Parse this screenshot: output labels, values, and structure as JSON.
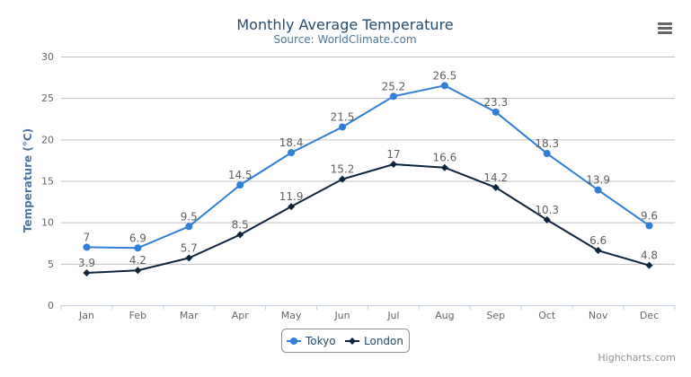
{
  "chart_data": {
    "type": "line",
    "title": "Monthly Average Temperature",
    "subtitle": "Source: WorldClimate.com",
    "ylabel": "Temperature (°C)",
    "xlabel": "",
    "ylim": [
      0,
      30
    ],
    "yticks": [
      0,
      5,
      10,
      15,
      20,
      25,
      30
    ],
    "grid": true,
    "legend_placement": "bottom-center",
    "categories": [
      "Jan",
      "Feb",
      "Mar",
      "Apr",
      "May",
      "Jun",
      "Jul",
      "Aug",
      "Sep",
      "Oct",
      "Nov",
      "Dec"
    ],
    "series": [
      {
        "name": "Tokyo",
        "color": "#2f7ed8",
        "marker": "circle",
        "values": [
          7.0,
          6.9,
          9.5,
          14.5,
          18.4,
          21.5,
          25.2,
          26.5,
          23.3,
          18.3,
          13.9,
          9.6
        ]
      },
      {
        "name": "London",
        "color": "#0d233a",
        "marker": "diamond",
        "values": [
          3.9,
          4.2,
          5.7,
          8.5,
          11.9,
          15.2,
          17.0,
          16.6,
          14.2,
          10.3,
          6.6,
          4.8
        ]
      }
    ],
    "credits": "Highcharts.com"
  },
  "toolbar": {
    "menu_icon": "hamburger-menu-icon"
  }
}
